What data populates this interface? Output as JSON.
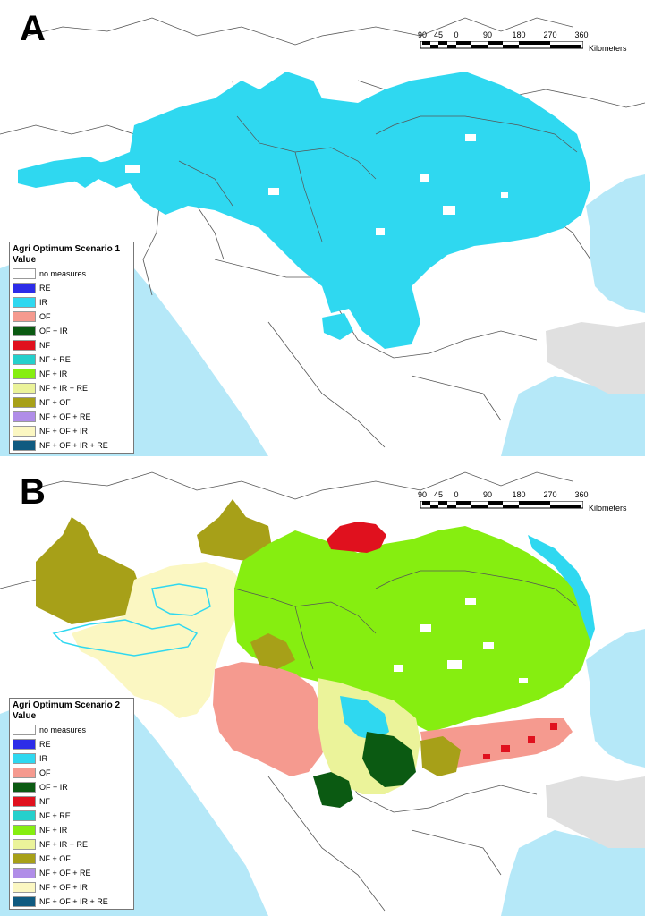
{
  "panels": [
    {
      "letter": "A",
      "legend_title": "Agri Optimum Scenario 1"
    },
    {
      "letter": "B",
      "legend_title": "Agri Optimum Scenario 2"
    }
  ],
  "legend": {
    "value_label": "Value",
    "items": [
      {
        "label": "no measures",
        "color": "#ffffff"
      },
      {
        "label": "RE",
        "color": "#2c2ce8"
      },
      {
        "label": "IR",
        "color": "#2fd8f0"
      },
      {
        "label": "OF",
        "color": "#f59a8f"
      },
      {
        "label": "OF + IR",
        "color": "#0b5a12"
      },
      {
        "label": "NF",
        "color": "#e0111e"
      },
      {
        "label": "NF + RE",
        "color": "#25d0cc"
      },
      {
        "label": "NF + IR",
        "color": "#86ee10"
      },
      {
        "label": "NF + IR + RE",
        "color": "#ebf39a"
      },
      {
        "label": "NF + OF",
        "color": "#a7a018"
      },
      {
        "label": "NF + OF + RE",
        "color": "#b08de8"
      },
      {
        "label": "NF + OF + IR",
        "color": "#fbf7c2"
      },
      {
        "label": "NF + OF + IR + RE",
        "color": "#0f5a80"
      }
    ]
  },
  "scalebar": {
    "ticks": [
      "90",
      "45",
      "0",
      "90",
      "180",
      "270",
      "360"
    ],
    "unit": "Kilometers"
  },
  "colors": {
    "sea": "#b5e8f8",
    "outside_land": "#e0e0e0",
    "border": "#555555"
  }
}
